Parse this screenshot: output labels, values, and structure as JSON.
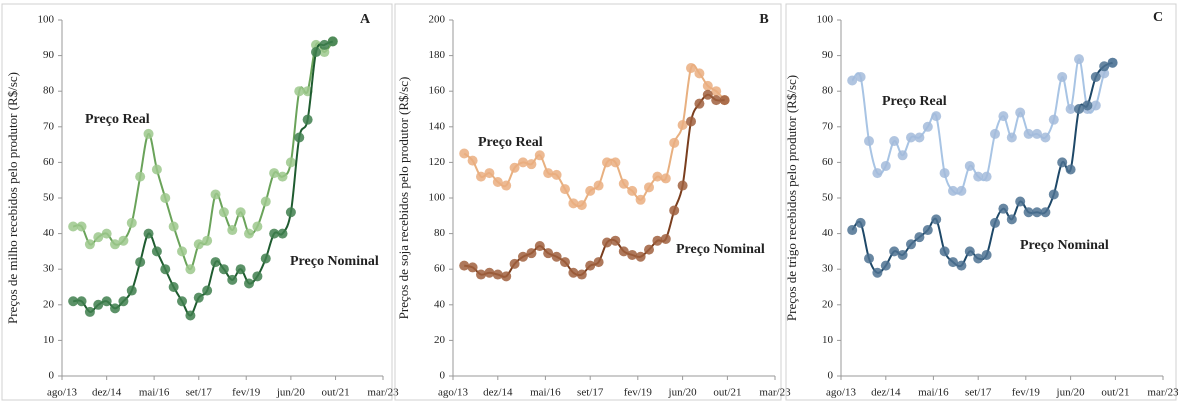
{
  "chart_data": [
    {
      "type": "scatter",
      "panel": "A",
      "y_label": "Preços de milho recebidos pelo produtor (R$/sc)",
      "annotations": [
        "Preço Real",
        "Preço Nominal"
      ],
      "trendline": true,
      "xlim": [
        0,
        115
      ],
      "ylim": [
        0,
        100
      ],
      "xticks": [
        {
          "value": 0,
          "label": "ago/13"
        },
        {
          "value": 16,
          "label": "dez/14"
        },
        {
          "value": 33,
          "label": "mai/16"
        },
        {
          "value": 49,
          "label": "set/17"
        },
        {
          "value": 66,
          "label": "fev/19"
        },
        {
          "value": 82,
          "label": "jun/20"
        },
        {
          "value": 98,
          "label": "out/21"
        },
        {
          "value": 115,
          "label": "mar/23"
        }
      ],
      "yticks": [
        0,
        10,
        20,
        30,
        40,
        50,
        60,
        70,
        80,
        90,
        100
      ],
      "x": [
        4,
        7,
        10,
        13,
        16,
        19,
        22,
        25,
        28,
        31,
        34,
        37,
        40,
        43,
        46,
        49,
        52,
        55,
        58,
        61,
        64,
        67,
        70,
        73,
        76,
        79,
        82,
        85,
        88,
        91,
        94,
        97
      ],
      "series": [
        {
          "name": "Preço Real",
          "color": "#9cc88c",
          "line_color": "#6aa35a",
          "values": [
            42,
            42,
            37,
            39,
            40,
            37,
            38,
            43,
            56,
            68,
            58,
            50,
            42,
            35,
            30,
            37,
            38,
            51,
            46,
            41,
            46,
            40,
            42,
            49,
            57,
            56,
            60,
            80,
            80,
            93,
            91,
            94
          ]
        },
        {
          "name": "Preço Nominal",
          "color": "#3f7f4e",
          "line_color": "#1f5c30",
          "values": [
            21,
            21,
            18,
            20,
            21,
            19,
            21,
            24,
            32,
            40,
            35,
            30,
            25,
            21,
            17,
            22,
            24,
            32,
            30,
            27,
            30,
            26,
            28,
            33,
            40,
            40,
            46,
            67,
            72,
            91,
            93,
            94
          ]
        }
      ]
    },
    {
      "type": "scatter",
      "panel": "B",
      "y_label": "Preços de soja recebidos pelo produtor (R$/sc)",
      "annotations": [
        "Preço Real",
        "Preço Nominal"
      ],
      "trendline": true,
      "xlim": [
        0,
        115
      ],
      "ylim": [
        0,
        200
      ],
      "xticks": [
        {
          "value": 0,
          "label": "ago/13"
        },
        {
          "value": 16,
          "label": "dez/14"
        },
        {
          "value": 33,
          "label": "mai/16"
        },
        {
          "value": 49,
          "label": "set/17"
        },
        {
          "value": 66,
          "label": "fev/19"
        },
        {
          "value": 82,
          "label": "jun/20"
        },
        {
          "value": 98,
          "label": "out/21"
        },
        {
          "value": 115,
          "label": "mar/23"
        }
      ],
      "yticks": [
        0,
        20,
        40,
        60,
        80,
        100,
        120,
        140,
        160,
        180,
        200
      ],
      "x": [
        4,
        7,
        10,
        13,
        16,
        19,
        22,
        25,
        28,
        31,
        34,
        37,
        40,
        43,
        46,
        49,
        52,
        55,
        58,
        61,
        64,
        67,
        70,
        73,
        76,
        79,
        82,
        85,
        88,
        91,
        94,
        97
      ],
      "series": [
        {
          "name": "Preço Real",
          "color": "#eaae80",
          "line_color": "#e8b080",
          "values": [
            125,
            121,
            112,
            114,
            109,
            107,
            117,
            120,
            119,
            124,
            114,
            113,
            105,
            97,
            96,
            104,
            107,
            120,
            120,
            108,
            104,
            99,
            106,
            112,
            111,
            131,
            141,
            173,
            170,
            163,
            160,
            155
          ]
        },
        {
          "name": "Preço Nominal",
          "color": "#a0603e",
          "line_color": "#7a3e1e",
          "values": [
            62,
            61,
            57,
            58,
            57,
            56,
            63,
            67,
            69,
            73,
            69,
            67,
            64,
            58,
            57,
            62,
            64,
            75,
            76,
            70,
            68,
            67,
            71,
            76,
            77,
            93,
            107,
            143,
            153,
            158,
            155,
            155
          ]
        }
      ]
    },
    {
      "type": "scatter",
      "panel": "C",
      "y_label": "Preços de trigo recebidos pelo produtor (R$/sc)",
      "annotations": [
        "Preço Real",
        "Preço Nominal"
      ],
      "trendline": true,
      "xlim": [
        0,
        115
      ],
      "ylim": [
        0,
        100
      ],
      "xticks": [
        {
          "value": 0,
          "label": "ago/13"
        },
        {
          "value": 16,
          "label": "dez/14"
        },
        {
          "value": 33,
          "label": "mai/16"
        },
        {
          "value": 49,
          "label": "set/17"
        },
        {
          "value": 66,
          "label": "fev/19"
        },
        {
          "value": 82,
          "label": "jun/20"
        },
        {
          "value": 98,
          "label": "out/21"
        },
        {
          "value": 115,
          "label": "mar/23"
        }
      ],
      "yticks": [
        0,
        10,
        20,
        30,
        40,
        50,
        60,
        70,
        80,
        90,
        100
      ],
      "x": [
        4,
        7,
        10,
        13,
        16,
        19,
        22,
        25,
        28,
        31,
        34,
        37,
        40,
        43,
        46,
        49,
        52,
        55,
        58,
        61,
        64,
        67,
        70,
        73,
        76,
        79,
        82,
        85,
        88,
        91,
        94,
        97
      ],
      "series": [
        {
          "name": "Preço Real",
          "color": "#a3bbdb",
          "line_color": "#a8c4e4",
          "values": [
            83,
            84,
            66,
            57,
            59,
            66,
            62,
            67,
            67,
            70,
            73,
            57,
            52,
            52,
            59,
            56,
            56,
            68,
            73,
            67,
            74,
            68,
            68,
            67,
            72,
            84,
            75,
            89,
            75,
            76,
            85,
            88
          ]
        },
        {
          "name": "Preço Nominal",
          "color": "#4d7292",
          "line_color": "#1e4868",
          "values": [
            41,
            43,
            33,
            29,
            31,
            35,
            34,
            37,
            39,
            41,
            44,
            35,
            32,
            31,
            35,
            33,
            34,
            43,
            47,
            44,
            49,
            46,
            46,
            46,
            51,
            60,
            58,
            75,
            76,
            84,
            87,
            88
          ]
        }
      ]
    }
  ]
}
